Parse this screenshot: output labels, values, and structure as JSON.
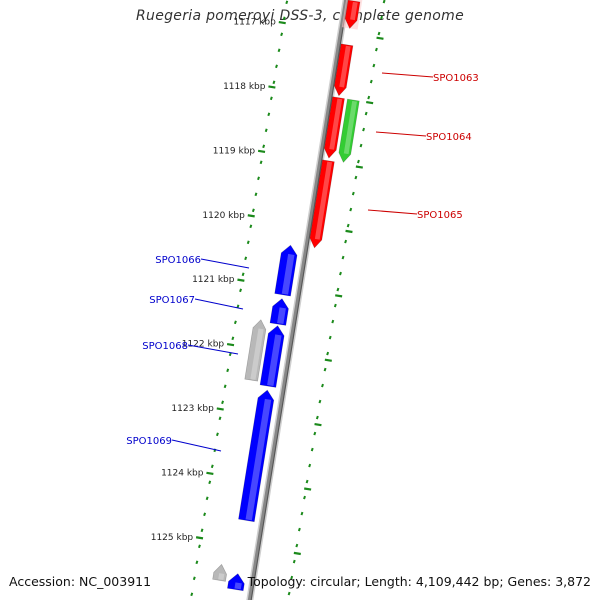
{
  "title": "Ruegeria pomeroyi DSS-3, complete genome",
  "accession_text": "Accession: NC_003911",
  "summary_text": "Topology: circular; Length: 4,109,442 bp; Genes: 3,872",
  "kbp_labels": [
    "1117 kbp",
    "1118 kbp",
    "1119 kbp",
    "1120 kbp",
    "1121 kbp",
    "1122 kbp",
    "1123 kbp",
    "1124 kbp",
    "1125 kbp"
  ],
  "genes": [
    {
      "name": "",
      "strand": "forward",
      "color": "#ff0000",
      "highlight": true,
      "lane": 1,
      "start_kbp": 1116.5,
      "end_kbp": 1116.93
    },
    {
      "name": "SPO1063",
      "strand": "forward",
      "color": "#ff0000",
      "lane": 1,
      "start_kbp": 1117.18,
      "end_kbp": 1117.98,
      "label_color": "#cc0000"
    },
    {
      "name": "",
      "strand": "forward",
      "color": "#ff0000",
      "lane": 1,
      "start_kbp": 1118.0,
      "end_kbp": 1118.95
    },
    {
      "name": "SPO1064",
      "strand": "forward",
      "color": "#33cc33",
      "lane": 2,
      "start_kbp": 1118.0,
      "end_kbp": 1118.98,
      "label_color": "#cc0000"
    },
    {
      "name": "SPO1065",
      "strand": "forward",
      "color": "#ff0000",
      "lane": 1,
      "start_kbp": 1118.98,
      "end_kbp": 1120.35,
      "label_color": "#cc0000"
    },
    {
      "name": "SPO1066",
      "strand": "reverse",
      "color": "#0000ff",
      "lane": 1,
      "start_kbp": 1120.35,
      "end_kbp": 1121.13,
      "label_color": "#0000cc"
    },
    {
      "name": "SPO1067",
      "strand": "reverse",
      "color": "#0000ff",
      "lane": 1,
      "start_kbp": 1121.18,
      "end_kbp": 1121.58,
      "label_color": "#0000cc"
    },
    {
      "name": "SPO1068",
      "strand": "reverse",
      "color": "#0000ff",
      "lane": 1,
      "start_kbp": 1121.6,
      "end_kbp": 1122.55,
      "label_color": "#0000cc"
    },
    {
      "name": "",
      "strand": "reverse",
      "color": "#b8b8b8",
      "lane": 2,
      "start_kbp": 1121.55,
      "end_kbp": 1122.5
    },
    {
      "name": "SPO1069",
      "strand": "reverse",
      "color": "#0000ff",
      "lane": 1,
      "start_kbp": 1122.6,
      "end_kbp": 1124.65,
      "label_color": "#0000cc"
    },
    {
      "name": "",
      "strand": "reverse",
      "color": "#b8b8b8",
      "lane": 2,
      "start_kbp": 1125.35,
      "end_kbp": 1125.6
    },
    {
      "name": "",
      "strand": "reverse",
      "color": "#0000ff",
      "lane": 1,
      "start_kbp": 1125.45,
      "end_kbp": 1125.7
    }
  ],
  "colors": {
    "backbone": "#888888",
    "tick": "#1b8a1b",
    "forward_label": "#cc0000",
    "reverse_label": "#0000cc"
  }
}
